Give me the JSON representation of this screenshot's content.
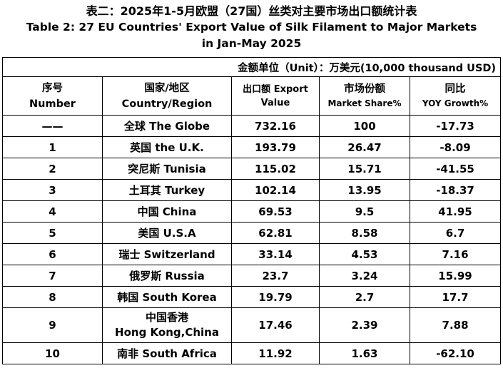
{
  "title": {
    "zh": "表二：2025年1-5月欧盟（27国）丝类对主要市场出口额统计表",
    "en_line1": "Table 2: 27 EU Countries' Export Value of Silk Filament to Major Markets",
    "en_line2": "in Jan-May 2025"
  },
  "unit": "金额单位（Unit）：万美元(10,000 thousand USD)",
  "headers": {
    "number_zh": "序号",
    "number_en": "Number",
    "country_zh": "国家/地区",
    "country_en": "Country/Region",
    "export_line1": "出口额  Export",
    "export_line2": "Value",
    "share_zh": "市场份额",
    "share_en": "Market Share%",
    "yoy_zh": "同比",
    "yoy_en": "YOY Growth%"
  },
  "rows": [
    {
      "num": "——",
      "country": "全球 The Globe",
      "value": "732.16",
      "share": "100",
      "yoy": "-17.73"
    },
    {
      "num": "1",
      "country": "英国 the U.K.",
      "value": "193.79",
      "share": "26.47",
      "yoy": "-8.09"
    },
    {
      "num": "2",
      "country": "突尼斯 Tunisia",
      "value": "115.02",
      "share": "15.71",
      "yoy": "-41.55"
    },
    {
      "num": "3",
      "country": "土耳其 Turkey",
      "value": "102.14",
      "share": "13.95",
      "yoy": "-18.37"
    },
    {
      "num": "4",
      "country": "中国 China",
      "value": "69.53",
      "share": "9.5",
      "yoy": "41.95"
    },
    {
      "num": "5",
      "country": "美国 U.S.A",
      "value": "62.81",
      "share": "8.58",
      "yoy": "6.7"
    },
    {
      "num": "6",
      "country": "瑞士 Switzerland",
      "value": "33.14",
      "share": "4.53",
      "yoy": "7.16"
    },
    {
      "num": "7",
      "country": "俄罗斯 Russia",
      "value": "23.7",
      "share": "3.24",
      "yoy": "15.99"
    },
    {
      "num": "8",
      "country": "韩国 South Korea",
      "value": "19.79",
      "share": "2.7",
      "yoy": "17.7"
    },
    {
      "num": "9",
      "country_line1": "中国香港",
      "country_line2": "Hong Kong,China",
      "value": "17.46",
      "share": "2.39",
      "yoy": "7.88"
    },
    {
      "num": "10",
      "country": "南非 South Africa",
      "value": "11.92",
      "share": "1.63",
      "yoy": "-62.10"
    }
  ]
}
